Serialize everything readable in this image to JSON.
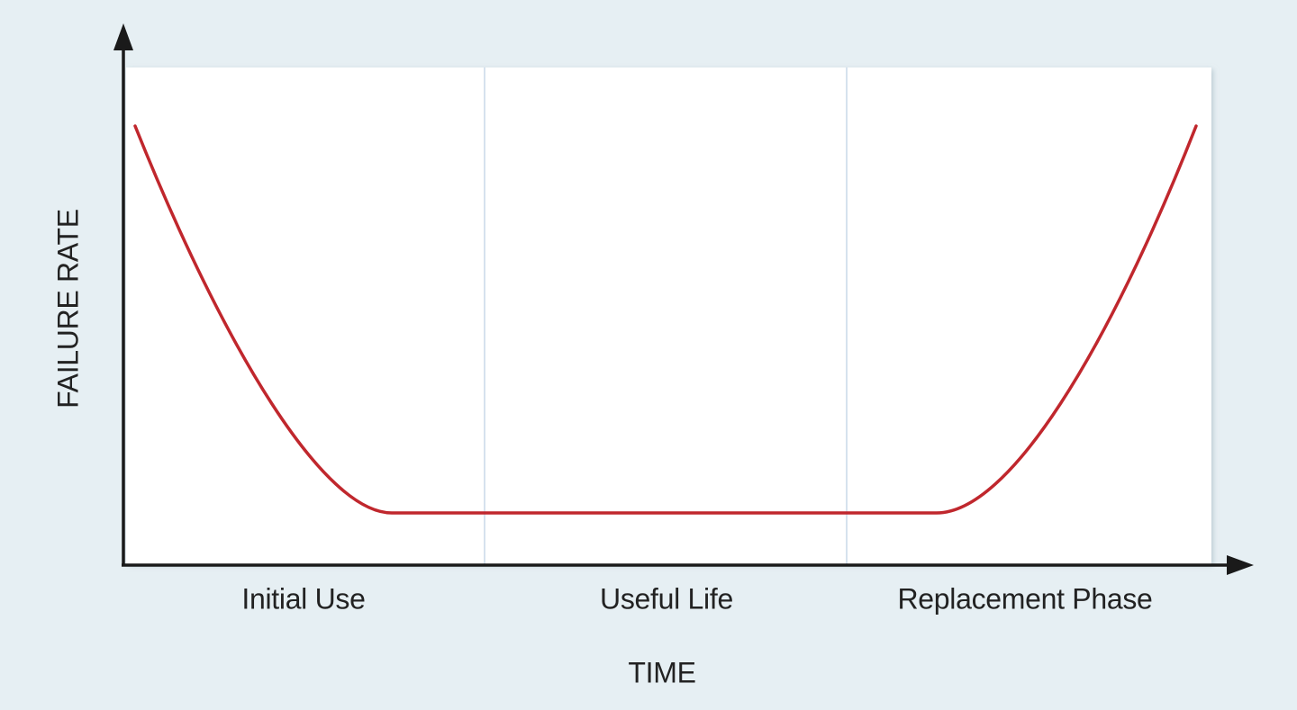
{
  "y_axis_label": "FAILURE RATE",
  "x_axis_label": "TIME",
  "phases": [
    "Initial Use",
    "Useful Life",
    "Replacement Phase"
  ]
}
